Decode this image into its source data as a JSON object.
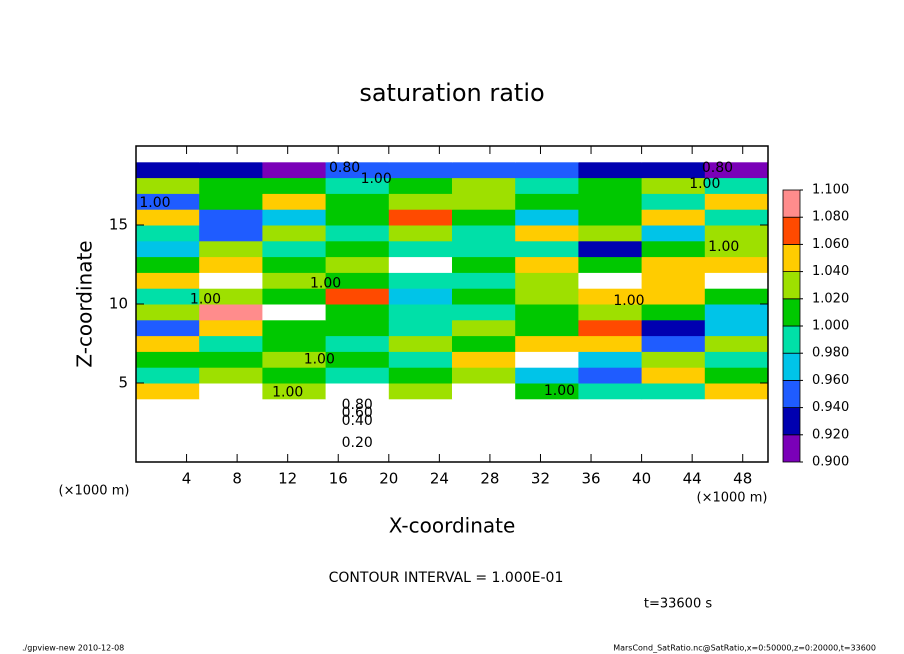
{
  "chart_data": {
    "type": "heatmap",
    "title": "saturation ratio",
    "xlabel": "X-coordinate",
    "ylabel": "Z-coordinate",
    "xunit": "(×1000 m)",
    "yunit": "(×1000 m)",
    "contour_note": "CONTOUR INTERVAL = 1.000E-01",
    "time_label": "t=33600 s",
    "footer_left": "./gpview-new  2010-12-08",
    "footer_right": "MarsCond_SatRatio.nc@SatRatio,x=0:50000,z=0:20000,t=33600",
    "xlim": [
      0,
      50
    ],
    "ylim": [
      0,
      20
    ],
    "xticks": [
      4,
      8,
      12,
      16,
      20,
      24,
      28,
      32,
      36,
      40,
      44,
      48
    ],
    "yticks": [
      5,
      10,
      15
    ],
    "x": [
      2.5,
      7.5,
      12.5,
      17.5,
      22.5,
      27.5,
      32.5,
      37.5,
      42.5,
      47.5
    ],
    "z": [
      0.5,
      1.5,
      2.5,
      3.5,
      4.5,
      5.5,
      6.5,
      7.5,
      8.5,
      9.5,
      10.5,
      11.5,
      12.5,
      13.5,
      14.5,
      15.5,
      16.5,
      17.5,
      18.5,
      19.5
    ],
    "values": [
      [
        0.15,
        0.15,
        0.15,
        0.15,
        0.15,
        0.15,
        0.15,
        0.15,
        0.15,
        0.15
      ],
      [
        0.25,
        0.25,
        0.25,
        0.25,
        0.25,
        0.25,
        0.25,
        0.25,
        0.25,
        0.25
      ],
      [
        0.45,
        0.45,
        0.45,
        0.45,
        0.45,
        0.45,
        0.45,
        0.45,
        0.45,
        0.45
      ],
      [
        0.75,
        0.75,
        0.75,
        0.75,
        0.75,
        0.75,
        0.75,
        0.75,
        0.75,
        0.75
      ],
      [
        1.06,
        1.12,
        1.04,
        1.12,
        1.03,
        1.12,
        1.02,
        1.0,
        0.99,
        1.05
      ],
      [
        0.99,
        1.03,
        1.02,
        1.0,
        1.01,
        1.03,
        0.97,
        0.95,
        1.06,
        1.01
      ],
      [
        1.02,
        1.01,
        1.03,
        1.02,
        1.0,
        1.06,
        1.12,
        0.98,
        1.04,
        1.0
      ],
      [
        1.05,
        0.99,
        1.01,
        1.0,
        1.04,
        1.02,
        1.05,
        1.06,
        0.95,
        1.03
      ],
      [
        0.96,
        1.06,
        1.02,
        1.01,
        0.99,
        1.03,
        1.01,
        1.08,
        0.94,
        0.98
      ],
      [
        1.03,
        1.09,
        1.12,
        1.02,
        1.0,
        0.99,
        1.01,
        1.04,
        1.01,
        0.97
      ],
      [
        1.0,
        1.04,
        1.02,
        1.07,
        0.98,
        1.01,
        1.03,
        1.06,
        1.05,
        1.02
      ],
      [
        1.05,
        1.12,
        1.03,
        1.02,
        1.0,
        0.99,
        1.04,
        1.12,
        1.06,
        1.12
      ],
      [
        1.02,
        1.06,
        1.02,
        1.03,
        1.12,
        1.01,
        1.06,
        1.02,
        1.05,
        1.06
      ],
      [
        0.97,
        1.03,
        1.0,
        1.01,
        0.99,
        1.0,
        0.99,
        0.94,
        1.01,
        1.04
      ],
      [
        1.0,
        0.95,
        1.04,
        0.99,
        1.03,
        0.99,
        1.06,
        1.03,
        0.98,
        1.03
      ],
      [
        1.05,
        0.96,
        0.98,
        1.02,
        1.07,
        1.02,
        0.97,
        1.01,
        1.06,
        0.99
      ],
      [
        0.95,
        1.02,
        1.05,
        1.01,
        1.03,
        1.04,
        1.01,
        1.02,
        0.99,
        1.05
      ],
      [
        1.03,
        1.01,
        1.02,
        1.0,
        1.02,
        1.03,
        1.0,
        1.02,
        1.04,
        1.0
      ],
      [
        0.93,
        0.93,
        0.92,
        0.95,
        0.96,
        0.96,
        0.95,
        0.93,
        0.93,
        0.92
      ],
      [
        0.8,
        0.8,
        0.8,
        0.8,
        0.8,
        0.8,
        0.8,
        0.8,
        0.8,
        0.8
      ]
    ],
    "cticks": [
      {
        "value": 0.9,
        "label": "0.900"
      },
      {
        "value": 0.92,
        "label": "0.920"
      },
      {
        "value": 0.94,
        "label": "0.940"
      },
      {
        "value": 0.96,
        "label": "0.960"
      },
      {
        "value": 0.98,
        "label": "0.980"
      },
      {
        "value": 1.0,
        "label": "1.000"
      },
      {
        "value": 1.02,
        "label": "1.020"
      },
      {
        "value": 1.04,
        "label": "1.040"
      },
      {
        "value": 1.06,
        "label": "1.060"
      },
      {
        "value": 1.08,
        "label": "1.080"
      },
      {
        "value": 1.1,
        "label": "1.100"
      }
    ],
    "colors": [
      "#7a00b8",
      "#0000b0",
      "#1f5cff",
      "#00c4e8",
      "#00e0a8",
      "#00c800",
      "#9ee000",
      "#ffcc00",
      "#ff4a00",
      "#ff8c8c"
    ],
    "contour_labels": [
      {
        "label": "0.80",
        "x": 16.5,
        "z": 18.6
      },
      {
        "label": "0.80",
        "x": 46,
        "z": 18.6
      },
      {
        "label": "1.00",
        "x": 19,
        "z": 17.9
      },
      {
        "label": "1.00",
        "x": 45,
        "z": 17.6
      },
      {
        "label": "1.00",
        "x": 1.5,
        "z": 16.4
      },
      {
        "label": "1.00",
        "x": 5.5,
        "z": 10.3
      },
      {
        "label": "1.00",
        "x": 15,
        "z": 11.3
      },
      {
        "label": "1.00",
        "x": 39,
        "z": 10.2
      },
      {
        "label": "1.00",
        "x": 46.5,
        "z": 13.6
      },
      {
        "label": "1.00",
        "x": 14.5,
        "z": 6.5
      },
      {
        "label": "1.00",
        "x": 12,
        "z": 4.4
      },
      {
        "label": "1.00",
        "x": 33.5,
        "z": 4.5
      },
      {
        "label": "0.80",
        "x": 17.5,
        "z": 3.6
      },
      {
        "label": "0.60",
        "x": 17.5,
        "z": 3.1
      },
      {
        "label": "0.40",
        "x": 17.5,
        "z": 2.6
      },
      {
        "label": "0.20",
        "x": 17.5,
        "z": 1.2
      }
    ]
  }
}
